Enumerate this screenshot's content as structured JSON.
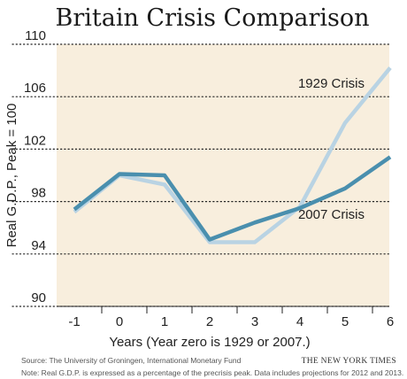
{
  "chart_data": {
    "type": "line",
    "title": "Britain Crisis Comparison",
    "xlabel": "Years (Year zero is 1929 or 2007.)",
    "ylabel": "Real G.D.P., Peak = 100",
    "x": [
      -1,
      0,
      1,
      2,
      3,
      4,
      5,
      6
    ],
    "x_tick_labels": [
      "-1",
      "0",
      "1",
      "2",
      "3",
      "4",
      "5",
      "6"
    ],
    "y_ticks": [
      "90",
      "94",
      "98",
      "102",
      "106",
      "110"
    ],
    "ylim": [
      90,
      110
    ],
    "grid": "horizontal dotted",
    "series": [
      {
        "name": "1929 Crisis",
        "color": "#b9d3e3",
        "x": [
          -1,
          0,
          1,
          2,
          3,
          4,
          5,
          6
        ],
        "values": [
          97.2,
          100.0,
          99.3,
          94.9,
          94.9,
          97.6,
          104.0,
          108.2
        ]
      },
      {
        "name": "2007 Crisis",
        "color": "#4a8fae",
        "x": [
          -1,
          0,
          1,
          2,
          3,
          4,
          5,
          6
        ],
        "values": [
          97.4,
          100.1,
          100.0,
          95.1,
          96.4,
          97.5,
          99.0,
          101.4
        ]
      }
    ],
    "background_color": "#f8eedd"
  },
  "footer": {
    "source": "Source: The University of Groningen, International Monetary Fund",
    "credit": "THE NEW YORK TIMES",
    "note": "Note: Real G.D.P. is expressed as a percentage of the precrisis peak. Data includes projections for 2012 and 2013."
  }
}
